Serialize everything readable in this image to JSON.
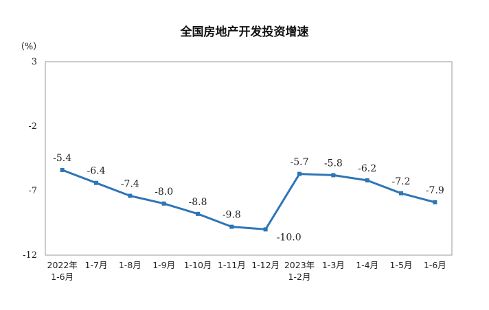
{
  "chart_data": {
    "type": "line",
    "title": "全国房地产开发投资增速",
    "ylabel": "（%）",
    "ylim": [
      -12,
      3
    ],
    "yticks": [
      "3",
      "-2",
      "-7",
      "-12"
    ],
    "ytick_values": [
      3,
      -2,
      -7,
      -12
    ],
    "categories": [
      [
        "2022年",
        "1-6月"
      ],
      [
        "1-7月"
      ],
      [
        "1-8月"
      ],
      [
        "1-9月"
      ],
      [
        "1-10月"
      ],
      [
        "1-11月"
      ],
      [
        "1-12月"
      ],
      [
        "2023年",
        "1-2月"
      ],
      [
        "1-3月"
      ],
      [
        "1-4月"
      ],
      [
        "1-5月"
      ],
      [
        "1-6月"
      ]
    ],
    "values": [
      -5.4,
      -6.4,
      -7.4,
      -8.0,
      -8.8,
      -9.8,
      -10.0,
      -5.7,
      -5.8,
      -6.2,
      -7.2,
      -7.9
    ],
    "data_labels": [
      "-5.4",
      "-6.4",
      "-7.4",
      "-8.0",
      "-8.8",
      "-9.8",
      "-10.0",
      "-5.7",
      "-5.8",
      "-6.2",
      "-7.2",
      "-7.9"
    ],
    "grid": false,
    "series_color": "#2E75B6"
  }
}
